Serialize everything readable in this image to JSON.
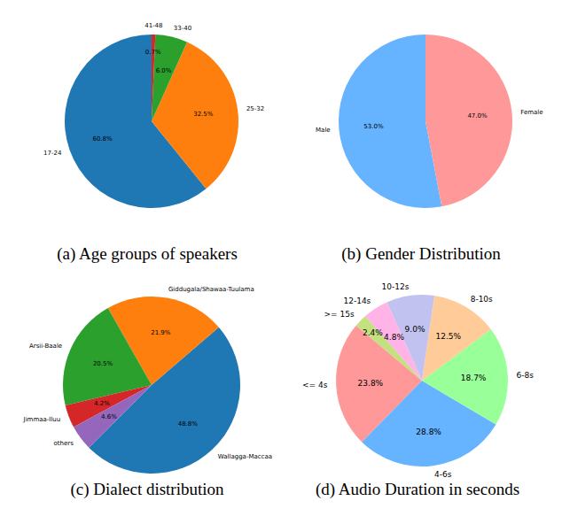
{
  "chart_data": [
    {
      "type": "pie",
      "title": "(a) Age groups of speakers",
      "categories": [
        "17-24",
        "25-32",
        "33-40",
        "41-48"
      ],
      "values": [
        60.8,
        32.5,
        6.0,
        0.7
      ],
      "value_labels": [
        "60.8%",
        "32.5%",
        "6.0%",
        "0.7%"
      ],
      "colors": [
        "#1f77b4",
        "#ff7f0e",
        "#2ca02c",
        "#d62728"
      ],
      "data_labels": true
    },
    {
      "type": "pie",
      "title": "(b) Gender Distribution",
      "categories": [
        "Male",
        "Female"
      ],
      "values": [
        53.0,
        47.0
      ],
      "value_labels": [
        "53.0%",
        "47.0%"
      ],
      "colors": [
        "#66b3ff",
        "#ff9999"
      ],
      "data_labels": true
    },
    {
      "type": "pie",
      "title": "(c) Dialect distribution",
      "categories": [
        "Wallagga-Maccaa",
        "Giddugala/Shawaa-Tuulama",
        "Arsii-Baale",
        "Jimmaa-Iluu",
        "others"
      ],
      "values": [
        48.8,
        21.9,
        20.5,
        4.2,
        4.6
      ],
      "value_labels": [
        "48.8%",
        "21.9%",
        "20.5%",
        "4.2%",
        "4.6%"
      ],
      "colors": [
        "#1f77b4",
        "#ff7f0e",
        "#2ca02c",
        "#d62728",
        "#9467bd"
      ],
      "data_labels": true
    },
    {
      "type": "pie",
      "title": "(d) Audio Duration in seconds",
      "categories": [
        "<= 4s",
        "4-6s",
        "6-8s",
        "8-10s",
        "10-12s",
        "12-14s",
        ">= 15s"
      ],
      "values": [
        23.8,
        28.8,
        18.7,
        12.5,
        9.0,
        4.8,
        2.4
      ],
      "value_labels": [
        "23.8%",
        "28.8%",
        "18.7%",
        "12.5%",
        "9.0%",
        "4.8%",
        "2.4%"
      ],
      "colors": [
        "#ff9999",
        "#66b3ff",
        "#99ff99",
        "#ffcc99",
        "#c2c2f0",
        "#ffb3e6",
        "#c4e17f"
      ],
      "data_labels": true
    }
  ]
}
